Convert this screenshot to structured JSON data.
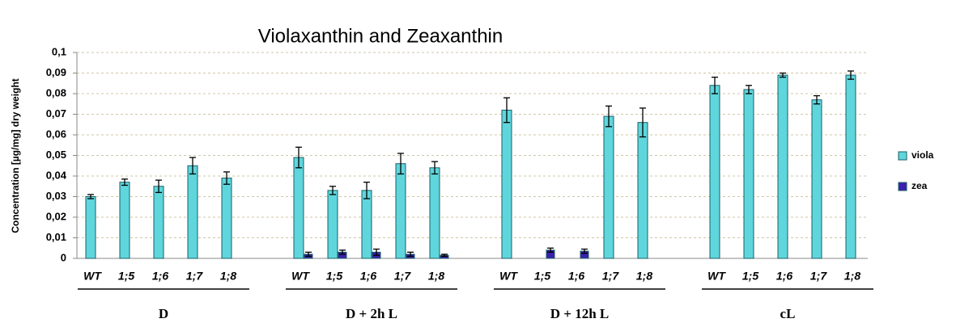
{
  "chart_data": {
    "type": "bar",
    "title": "Violaxanthin and Zeaxanthin",
    "y_label": "Concentration [µg/mg] dry weight",
    "groups": [
      "D",
      "D + 2h L",
      "D + 12h L",
      "cL"
    ],
    "categories": [
      "WT",
      "1;5",
      "1;6",
      "1;7",
      "1;8",
      "WT",
      "1;5",
      "1;6",
      "1;7",
      "1;8",
      "WT",
      "1;5",
      "1;6",
      "1;7",
      "1;8",
      "WT",
      "1;5",
      "1;6",
      "1;7",
      "1;8"
    ],
    "series": [
      {
        "name": "viola",
        "color": "#5fd6dc",
        "values": [
          0.03,
          0.037,
          0.035,
          0.045,
          0.039,
          0.049,
          0.033,
          0.033,
          0.046,
          0.044,
          0.072,
          null,
          null,
          0.069,
          0.066,
          0.084,
          0.082,
          0.089,
          0.077,
          0.089
        ],
        "errors": [
          0.001,
          0.0015,
          0.003,
          0.004,
          0.003,
          0.005,
          0.002,
          0.004,
          0.005,
          0.003,
          0.006,
          null,
          null,
          0.005,
          0.007,
          0.004,
          0.002,
          0.001,
          0.002,
          0.002
        ]
      },
      {
        "name": "zea",
        "color": "#3b1fae",
        "values": [
          null,
          null,
          null,
          null,
          null,
          0.002,
          0.003,
          0.003,
          0.002,
          0.0015,
          null,
          0.004,
          0.0035,
          null,
          null,
          null,
          null,
          null,
          null,
          null
        ],
        "errors": [
          null,
          null,
          null,
          null,
          null,
          0.001,
          0.001,
          0.0015,
          0.001,
          0.0005,
          null,
          0.001,
          0.001,
          null,
          null,
          null,
          null,
          null,
          null,
          null
        ]
      }
    ],
    "ylim": [
      0,
      0.1
    ],
    "yticks": [
      0,
      {
        "value": 0.01,
        "label": "0,01"
      },
      {
        "value": 0.02,
        "label": "0,02"
      },
      {
        "value": 0.03,
        "label": "0,03"
      },
      {
        "value": 0.04,
        "label": "0,04"
      },
      {
        "value": 0.05,
        "label": "0,05"
      },
      {
        "value": 0.06,
        "label": "0,06"
      },
      {
        "value": 0.07,
        "label": "0,07"
      },
      {
        "value": 0.08,
        "label": "0,08"
      },
      {
        "value": 0.09,
        "label": "0,09"
      },
      {
        "value": 0.1,
        "label": "0,1"
      }
    ],
    "grid": true,
    "legend": "right"
  }
}
